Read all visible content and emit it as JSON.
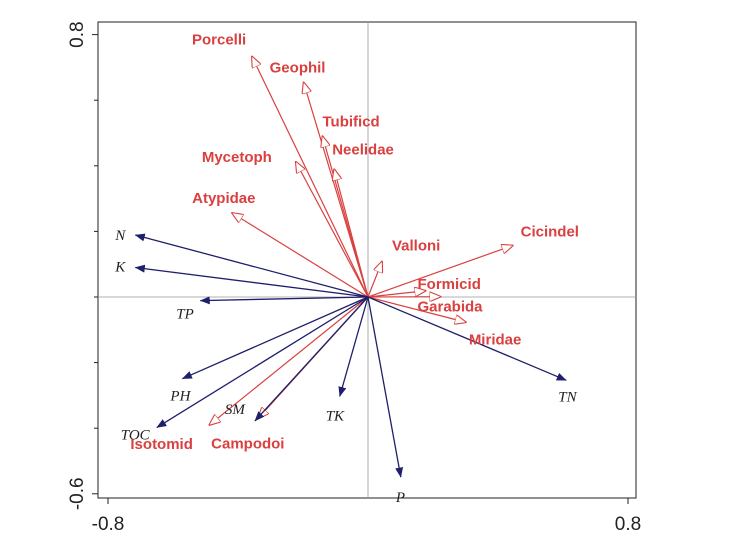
{
  "chart_data": {
    "type": "scatter",
    "subtype": "rda-biplot",
    "title": "",
    "xlabel": "",
    "ylabel": "",
    "xlim": [
      -0.8,
      0.8
    ],
    "ylim": [
      -0.6,
      0.8
    ],
    "x_ticks": [
      {
        "value": -0.8,
        "label": "-0.8"
      },
      {
        "value": 0.8,
        "label": "0.8"
      }
    ],
    "y_ticks": [
      {
        "value": 0.8,
        "label": "0.8"
      },
      {
        "value": -0.6,
        "label": "-0.6"
      }
    ],
    "origin_lines": true,
    "grid": false,
    "colors": {
      "species": "#d9403f",
      "environment": "#1f1f6b",
      "axes": "#222222",
      "origin_lines": "#999999"
    },
    "species_series": {
      "name": "",
      "arrow_style": "open-head",
      "vectors": [
        {
          "label": "Porcelli",
          "x": -0.357,
          "y": 0.733
        },
        {
          "label": "Geophil",
          "x": -0.198,
          "y": 0.654
        },
        {
          "label": "Tubificd",
          "x": -0.14,
          "y": 0.49
        },
        {
          "label": "Neelidae",
          "x": -0.104,
          "y": 0.389
        },
        {
          "label": "Mycetoph",
          "x": -0.222,
          "y": 0.412
        },
        {
          "label": "Atypidae",
          "x": -0.418,
          "y": 0.256
        },
        {
          "label": "Valloni",
          "x": 0.043,
          "y": 0.108
        },
        {
          "label": "Cicindel",
          "x": 0.445,
          "y": 0.157
        },
        {
          "label": "Formicid",
          "x": 0.177,
          "y": 0.019
        },
        {
          "label": "Garabida",
          "x": 0.223,
          "y": 0.001
        },
        {
          "label": "Miridae",
          "x": 0.301,
          "y": -0.077
        },
        {
          "label": "Isotomid",
          "x": -0.488,
          "y": -0.39
        },
        {
          "label": "Campodoi",
          "x": -0.338,
          "y": -0.37
        }
      ]
    },
    "environment_series": {
      "name": "",
      "arrow_style": "solid-head",
      "vectors": [
        {
          "label": "N",
          "x": -0.716,
          "y": 0.189
        },
        {
          "label": "K",
          "x": -0.716,
          "y": 0.09
        },
        {
          "label": "TP",
          "x": -0.516,
          "y": -0.011
        },
        {
          "label": "PH",
          "x": -0.571,
          "y": -0.249
        },
        {
          "label": "TOC",
          "x": -0.65,
          "y": -0.398
        },
        {
          "label": "SM",
          "x": -0.348,
          "y": -0.378
        },
        {
          "label": "TK",
          "x": -0.087,
          "y": -0.303
        },
        {
          "label": "P",
          "x": 0.101,
          "y": -0.549
        },
        {
          "label": "TN",
          "x": 0.61,
          "y": -0.254
        }
      ]
    }
  }
}
